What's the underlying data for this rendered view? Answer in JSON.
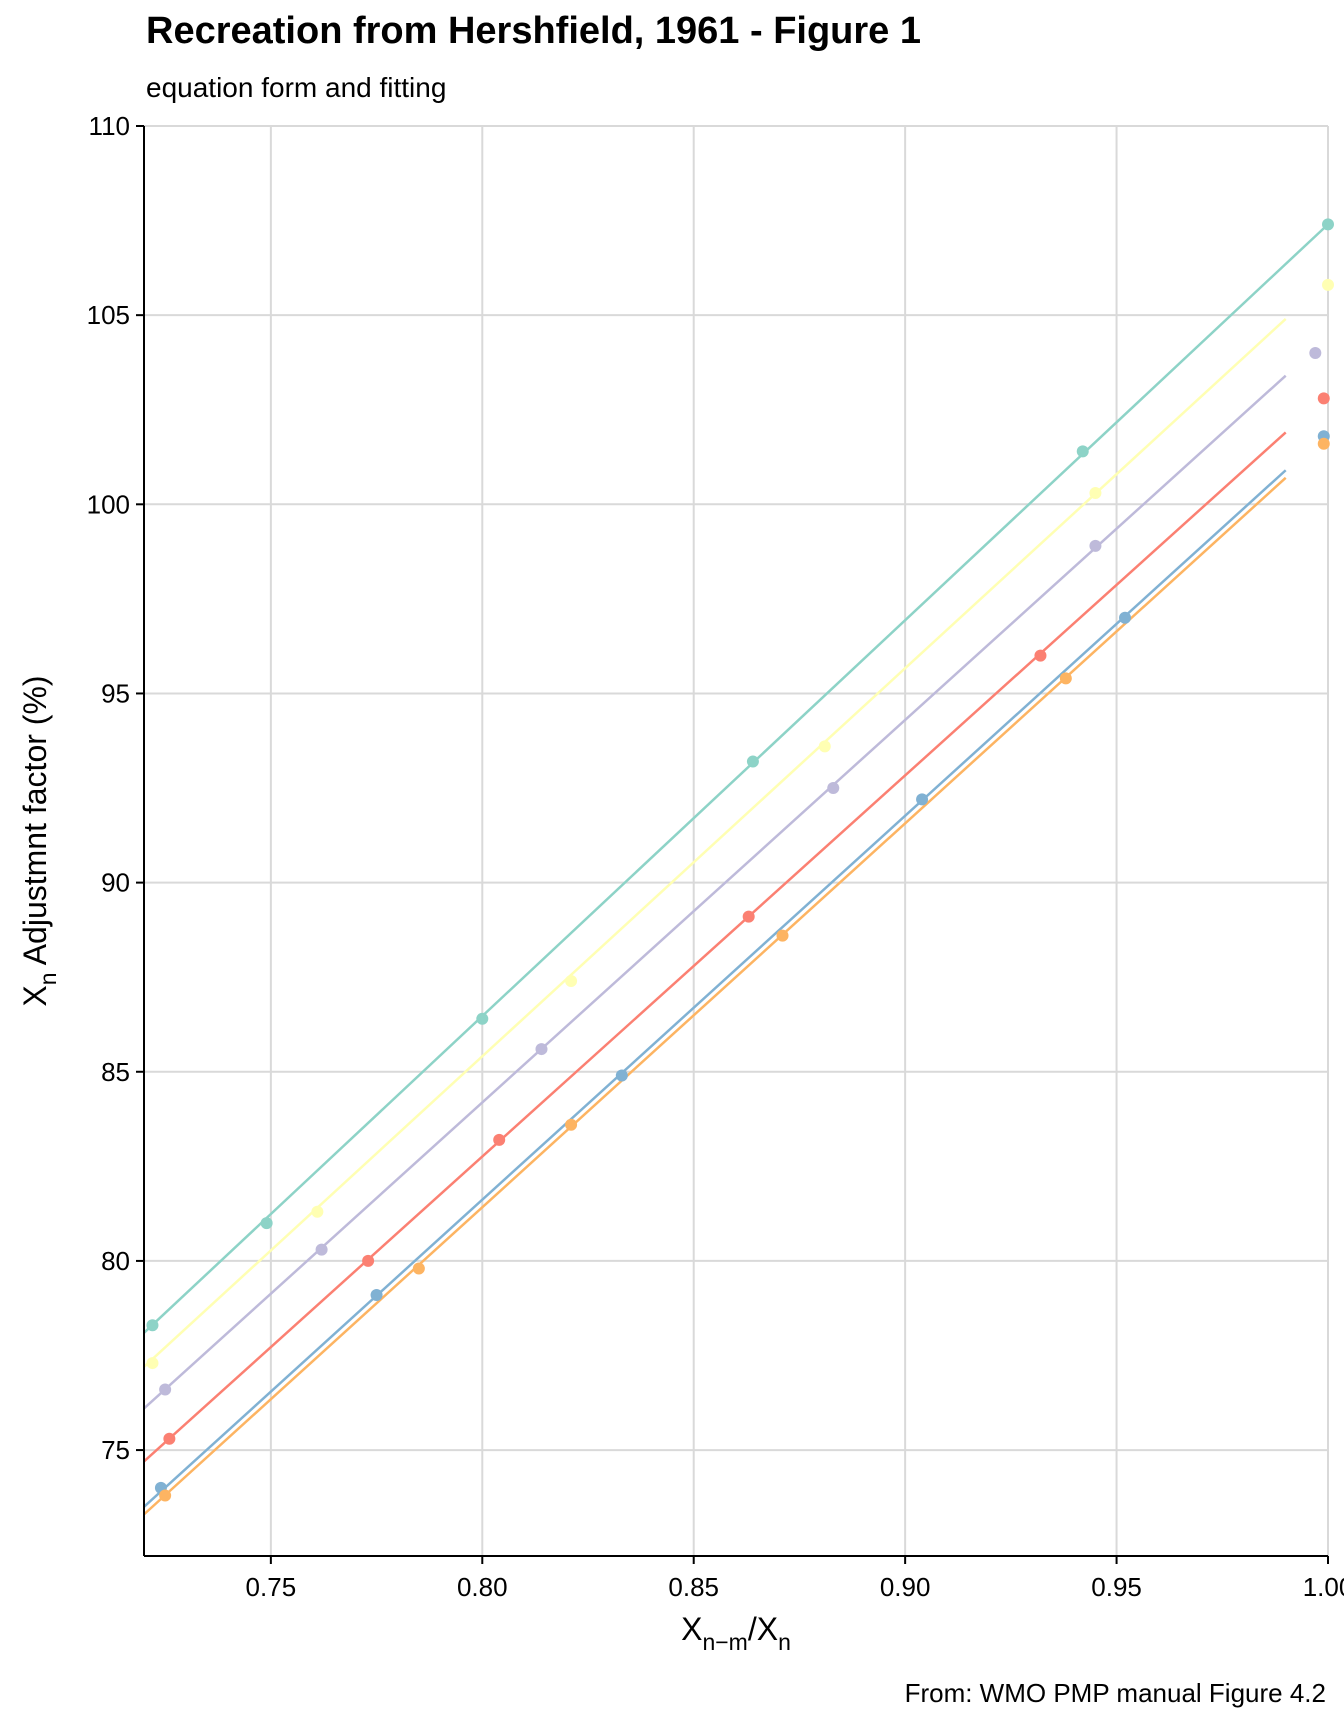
{
  "chart_data": {
    "type": "scatter",
    "title": "Recreation from Hershfield, 1961 - Figure 1",
    "subtitle": "equation form and fitting",
    "caption": "From: WMO PMP manual Figure 4.2",
    "xlabel": {
      "base": "X",
      "sub": "n−m",
      "sep": "/",
      "base2": "X",
      "sub2": "n"
    },
    "ylabel": {
      "base": "X",
      "sub": "n",
      "rest": " Adjustmnt factor (%)"
    },
    "xlim": [
      0.72,
      1.0
    ],
    "ylim": [
      72.2,
      110
    ],
    "x_ticks": [
      0.75,
      0.8,
      0.85,
      0.9,
      0.95,
      1.0
    ],
    "x_tick_labels": [
      "0.75",
      "0.80",
      "0.85",
      "0.90",
      "0.95",
      "1.00"
    ],
    "y_ticks": [
      75,
      80,
      85,
      90,
      95,
      100,
      105,
      110
    ],
    "y_tick_labels": [
      "75",
      "80",
      "85",
      "90",
      "95",
      "100",
      "105",
      "110"
    ],
    "grid": true,
    "legend": "none",
    "series": [
      {
        "color": "#8dd3c7",
        "points": [
          [
            0.722,
            78.3
          ],
          [
            0.749,
            81.0
          ],
          [
            0.8,
            86.4
          ],
          [
            0.864,
            93.2
          ],
          [
            0.942,
            101.4
          ],
          [
            1.0,
            107.4
          ]
        ],
        "fit": {
          "x_start": 0.72,
          "y_start": 78.1,
          "x_end": 1.0,
          "y_end": 107.4
        }
      },
      {
        "color": "#ffffb3",
        "points": [
          [
            0.722,
            77.3
          ],
          [
            0.761,
            81.3
          ],
          [
            0.821,
            87.4
          ],
          [
            0.881,
            93.6
          ],
          [
            0.945,
            100.3
          ],
          [
            1.0,
            105.8
          ]
        ],
        "fit": {
          "x_start": 0.72,
          "y_start": 77.2,
          "x_end": 0.99,
          "y_end": 104.9
        }
      },
      {
        "color": "#bebada",
        "points": [
          [
            0.725,
            76.6
          ],
          [
            0.762,
            80.3
          ],
          [
            0.814,
            85.6
          ],
          [
            0.883,
            92.5
          ],
          [
            0.945,
            98.9
          ],
          [
            0.997,
            104.0
          ]
        ],
        "fit": {
          "x_start": 0.72,
          "y_start": 76.1,
          "x_end": 0.99,
          "y_end": 103.4
        }
      },
      {
        "color": "#fb8072",
        "points": [
          [
            0.726,
            75.3
          ],
          [
            0.773,
            80.0
          ],
          [
            0.804,
            83.2
          ],
          [
            0.863,
            89.1
          ],
          [
            0.932,
            96.0
          ],
          [
            0.999,
            102.8
          ]
        ],
        "fit": {
          "x_start": 0.72,
          "y_start": 74.7,
          "x_end": 0.99,
          "y_end": 101.9
        }
      },
      {
        "color": "#80b1d3",
        "points": [
          [
            0.724,
            74.0
          ],
          [
            0.775,
            79.1
          ],
          [
            0.833,
            84.9
          ],
          [
            0.904,
            92.2
          ],
          [
            0.952,
            97.0
          ],
          [
            0.999,
            101.8
          ]
        ],
        "fit": {
          "x_start": 0.72,
          "y_start": 73.5,
          "x_end": 0.99,
          "y_end": 100.9
        }
      },
      {
        "color": "#fdb462",
        "points": [
          [
            0.725,
            73.8
          ],
          [
            0.785,
            79.8
          ],
          [
            0.821,
            83.6
          ],
          [
            0.871,
            88.6
          ],
          [
            0.938,
            95.4
          ],
          [
            0.999,
            101.6
          ]
        ],
        "fit": {
          "x_start": 0.72,
          "y_start": 73.3,
          "x_end": 0.99,
          "y_end": 100.7
        }
      }
    ]
  }
}
